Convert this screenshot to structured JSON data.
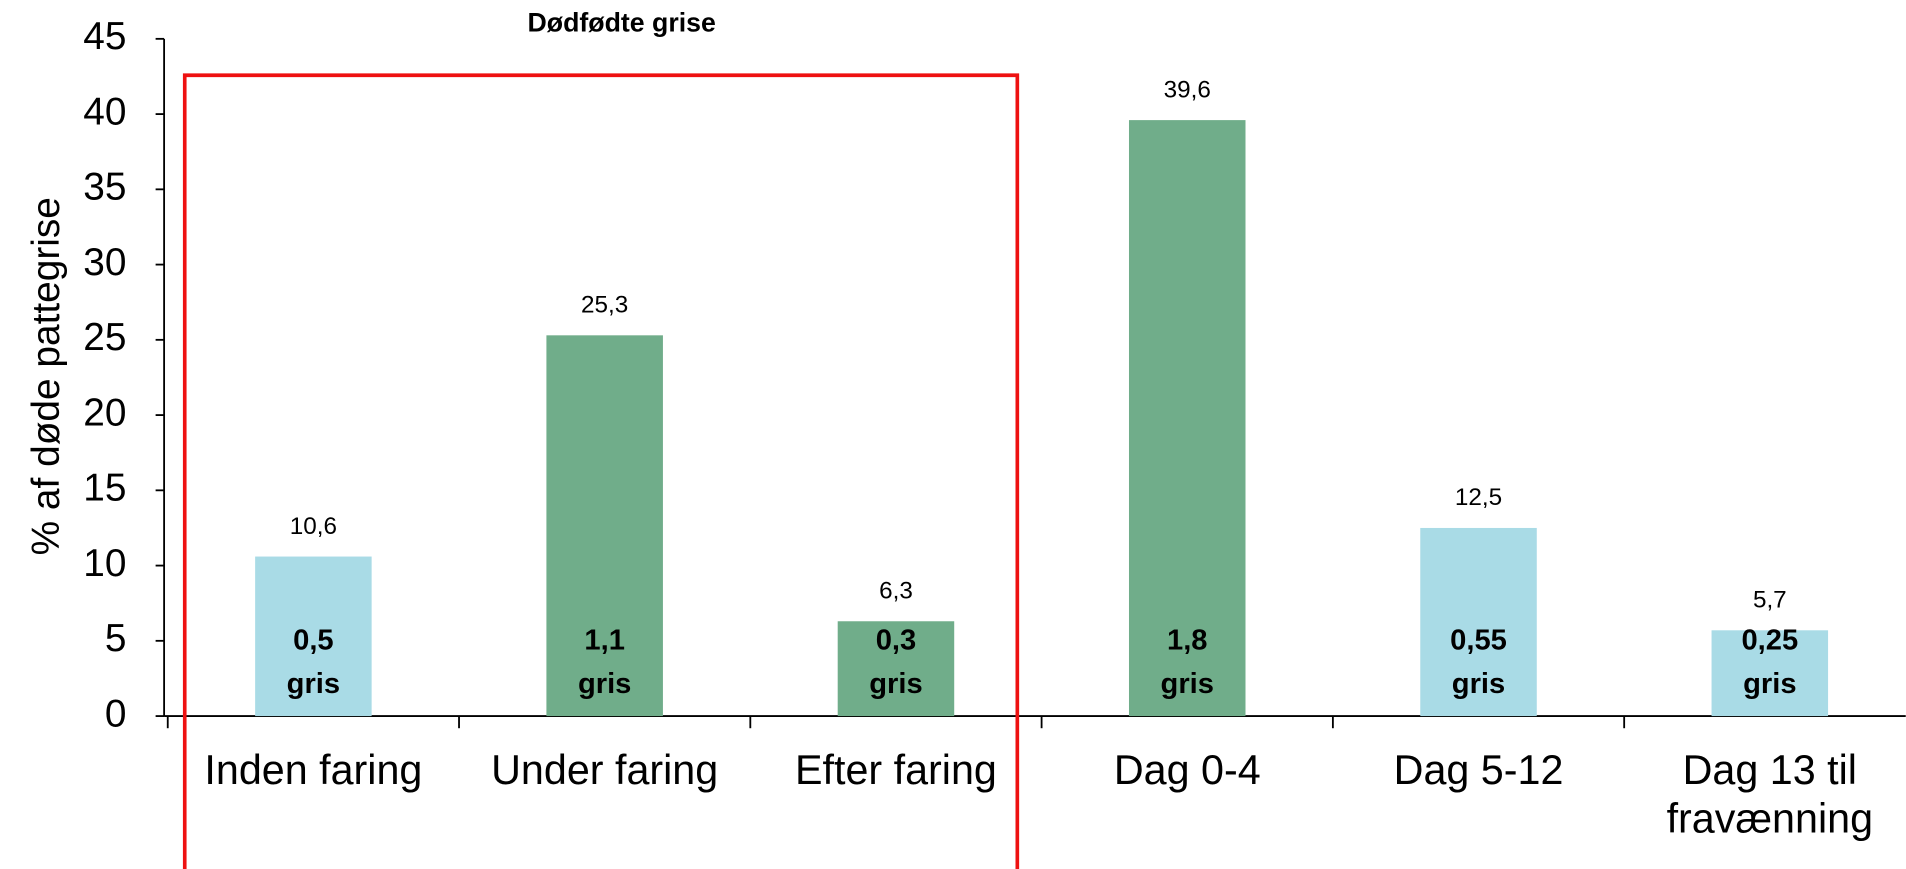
{
  "chart_data": {
    "type": "bar",
    "y_label": "% af døde pattegrise",
    "categories": [
      "Inden faring",
      "Under faring",
      "Efter faring",
      "Dag 0-4",
      "Dag 5-12",
      "Dag 13 til fravænning"
    ],
    "values": [
      10.6,
      25.3,
      6.3,
      39.6,
      12.5,
      5.7
    ],
    "value_labels": [
      "10,6",
      "25,3",
      "6,3",
      "39,6",
      "12,5",
      "5,7"
    ],
    "inner_labels": [
      "0,5 gris",
      "1,1 gris",
      "0,3 gris",
      "1,8 gris",
      "0,55 gris",
      "0,25 gris"
    ],
    "colors": [
      "#a9dbe6",
      "#70ad8a",
      "#70ad8a",
      "#70ad8a",
      "#a9dbe6",
      "#a9dbe6"
    ],
    "ylim": [
      0,
      45
    ],
    "yticks": [
      0,
      5,
      10,
      15,
      20,
      25,
      30,
      35,
      40,
      45
    ],
    "annotation": {
      "text": "Dødfødte grise",
      "color": "#ee1111"
    }
  }
}
